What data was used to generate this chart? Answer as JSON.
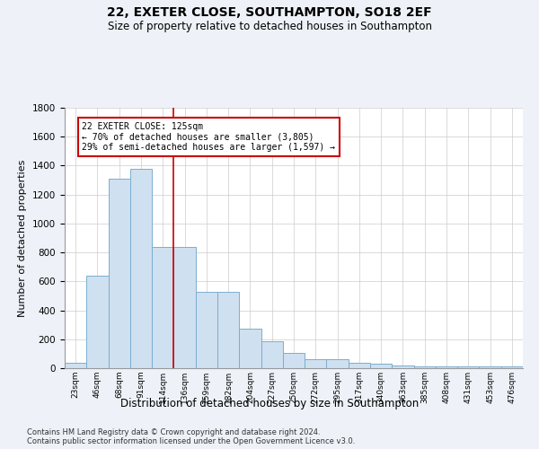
{
  "title1": "22, EXETER CLOSE, SOUTHAMPTON, SO18 2EF",
  "title2": "Size of property relative to detached houses in Southampton",
  "xlabel": "Distribution of detached houses by size in Southampton",
  "ylabel": "Number of detached properties",
  "categories": [
    "23sqm",
    "46sqm",
    "68sqm",
    "91sqm",
    "114sqm",
    "136sqm",
    "159sqm",
    "182sqm",
    "204sqm",
    "227sqm",
    "250sqm",
    "272sqm",
    "295sqm",
    "317sqm",
    "340sqm",
    "363sqm",
    "385sqm",
    "408sqm",
    "431sqm",
    "453sqm",
    "476sqm"
  ],
  "values": [
    40,
    640,
    1310,
    1380,
    840,
    840,
    530,
    530,
    275,
    185,
    105,
    60,
    60,
    35,
    28,
    20,
    10,
    10,
    10,
    10,
    10
  ],
  "bar_color": "#cfe0f0",
  "bar_edge_color": "#7aaed0",
  "vline_x": 4.5,
  "vline_color": "#cc0000",
  "annotation_text": "22 EXETER CLOSE: 125sqm\n← 70% of detached houses are smaller (3,805)\n29% of semi-detached houses are larger (1,597) →",
  "annotation_box_color": "#ffffff",
  "annotation_box_edge": "#cc0000",
  "ylim": [
    0,
    1800
  ],
  "yticks": [
    0,
    200,
    400,
    600,
    800,
    1000,
    1200,
    1400,
    1600,
    1800
  ],
  "footer1": "Contains HM Land Registry data © Crown copyright and database right 2024.",
  "footer2": "Contains public sector information licensed under the Open Government Licence v3.0.",
  "bg_color": "#eef2f8",
  "plot_bg_color": "#ffffff"
}
